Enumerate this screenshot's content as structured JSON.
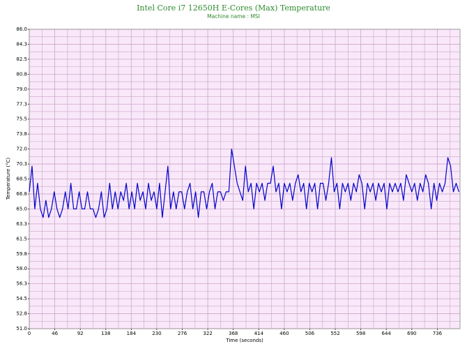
{
  "chart_data": {
    "type": "line",
    "title": "Intel Core i7 12650H E-Cores (Max) Temperature",
    "subtitle": "Machine name : MSI",
    "x_label": "Time (seconds)",
    "y_label": "Temperature (°C)",
    "color": "#0000cc",
    "grid": true,
    "minor_grid": true,
    "xlim": [
      0,
      777
    ],
    "ylim": [
      51,
      86
    ],
    "xticks": [
      0,
      46,
      92,
      138,
      184,
      230,
      276,
      322,
      368,
      414,
      460,
      506,
      552,
      598,
      644,
      690,
      736
    ],
    "yticks": [
      {
        "value": 51,
        "label": "51.0"
      },
      {
        "value": 52.75,
        "label": "52.8"
      },
      {
        "value": 54.5,
        "label": "54.5"
      },
      {
        "value": 56.25,
        "label": "56.3"
      },
      {
        "value": 58,
        "label": "58.0"
      },
      {
        "value": 59.75,
        "label": "59.8"
      },
      {
        "value": 61.5,
        "label": "61.5"
      },
      {
        "value": 63.25,
        "label": "63.3"
      },
      {
        "value": 65,
        "label": "65.0"
      },
      {
        "value": 66.75,
        "label": "66.8"
      },
      {
        "value": 68.5,
        "label": "68.5"
      },
      {
        "value": 70.25,
        "label": "70.3"
      },
      {
        "value": 72,
        "label": "72.0"
      },
      {
        "value": 73.75,
        "label": "73.8"
      },
      {
        "value": 75.5,
        "label": "75.5"
      },
      {
        "value": 77.25,
        "label": "77.3"
      },
      {
        "value": 79,
        "label": "79.0"
      },
      {
        "value": 80.75,
        "label": "80.8"
      },
      {
        "value": 82.5,
        "label": "82.5"
      },
      {
        "value": 84.25,
        "label": "84.3"
      },
      {
        "value": 86,
        "label": "86.0"
      }
    ],
    "x": [
      0,
      5,
      10,
      15,
      20,
      25,
      30,
      35,
      40,
      45,
      50,
      55,
      60,
      65,
      70,
      75,
      80,
      85,
      90,
      95,
      100,
      105,
      110,
      115,
      120,
      125,
      130,
      135,
      140,
      145,
      150,
      155,
      160,
      165,
      170,
      175,
      180,
      185,
      190,
      195,
      200,
      205,
      210,
      215,
      220,
      225,
      230,
      235,
      240,
      245,
      250,
      255,
      260,
      265,
      270,
      275,
      280,
      285,
      290,
      295,
      300,
      305,
      310,
      315,
      320,
      325,
      330,
      335,
      340,
      345,
      350,
      355,
      360,
      365,
      370,
      375,
      380,
      385,
      390,
      395,
      400,
      405,
      410,
      415,
      420,
      425,
      430,
      435,
      440,
      445,
      450,
      455,
      460,
      465,
      470,
      475,
      480,
      485,
      490,
      495,
      500,
      505,
      510,
      515,
      520,
      525,
      530,
      535,
      540,
      545,
      550,
      555,
      560,
      565,
      570,
      575,
      580,
      585,
      590,
      595,
      600,
      605,
      610,
      615,
      620,
      625,
      630,
      635,
      640,
      645,
      650,
      655,
      660,
      665,
      670,
      675,
      680,
      685,
      690,
      695,
      700,
      705,
      710,
      715,
      720,
      725,
      730,
      735,
      740,
      745,
      750,
      755,
      760,
      765,
      770,
      775
    ],
    "values": [
      67,
      70,
      65,
      68,
      65,
      64,
      66,
      64,
      65,
      67,
      65,
      64,
      65,
      67,
      65,
      68,
      65,
      65,
      67,
      65,
      65,
      67,
      65,
      65,
      64,
      65,
      67,
      64,
      65,
      68,
      65,
      67,
      65,
      67,
      66,
      68,
      65,
      67,
      65,
      68,
      66,
      67,
      65,
      68,
      66,
      67,
      65,
      68,
      64,
      67,
      70,
      65,
      67,
      65,
      67,
      67,
      65,
      67,
      68,
      65,
      67,
      64,
      67,
      67,
      65,
      67,
      68,
      65,
      67,
      67,
      66,
      67,
      67,
      72,
      70,
      68,
      67,
      66,
      70,
      67,
      68,
      65,
      68,
      67,
      68,
      66,
      68,
      68,
      70,
      67,
      68,
      65,
      68,
      67,
      68,
      66,
      68,
      69,
      67,
      68,
      65,
      68,
      67,
      68,
      65,
      68,
      68,
      66,
      68,
      71,
      67,
      68,
      65,
      68,
      67,
      68,
      66,
      68,
      67,
      69,
      68,
      65,
      68,
      67,
      68,
      66,
      68,
      67,
      68,
      65,
      68,
      67,
      68,
      67,
      68,
      66,
      69,
      68,
      67,
      68,
      66,
      68,
      67,
      69,
      68,
      65,
      68,
      66,
      68,
      67,
      68,
      71,
      70,
      67,
      68,
      67
    ]
  }
}
